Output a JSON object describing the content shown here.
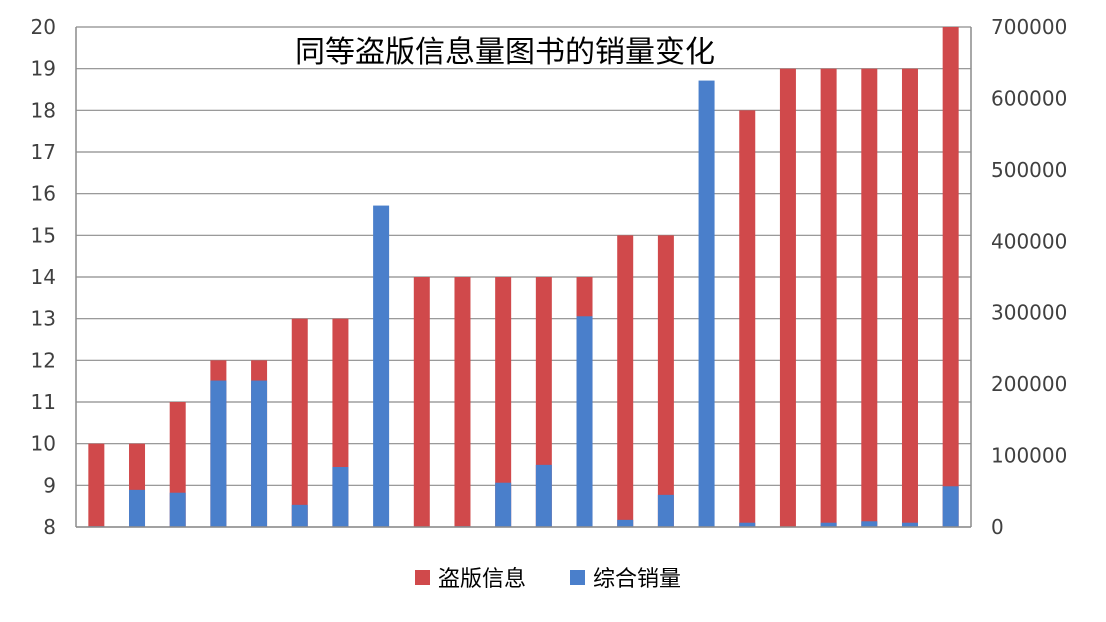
{
  "chart_data": {
    "type": "bar",
    "title": "同等盗版信息量图书的销量变化",
    "left_axis": {
      "min": 8,
      "max": 20,
      "step": 1,
      "ticks": [
        "8",
        "9",
        "10",
        "11",
        "12",
        "13",
        "14",
        "15",
        "16",
        "17",
        "18",
        "19",
        "20"
      ]
    },
    "right_axis": {
      "min": 0,
      "max": 700000,
      "step": 100000,
      "ticks": [
        "0",
        "100000",
        "200000",
        "300000",
        "400000",
        "500000",
        "600000",
        "700000"
      ]
    },
    "grid": true,
    "legend_position": "bottom",
    "series": [
      {
        "name": "盗版信息",
        "axis": "left",
        "color": "#d0494b",
        "values": [
          10,
          10,
          11,
          12,
          12,
          13,
          13,
          8,
          14,
          14,
          14,
          14,
          14,
          15,
          15,
          8,
          18,
          19,
          19,
          19,
          19,
          20
        ]
      },
      {
        "name": "综合销量",
        "axis": "right",
        "color": "#4a7fcb",
        "values": [
          1000,
          52000,
          48000,
          205000,
          205000,
          31000,
          84000,
          450000,
          0,
          1000,
          62000,
          87000,
          295000,
          10000,
          45000,
          625000,
          6000,
          0,
          6000,
          8000,
          6000,
          57000
        ]
      }
    ]
  }
}
